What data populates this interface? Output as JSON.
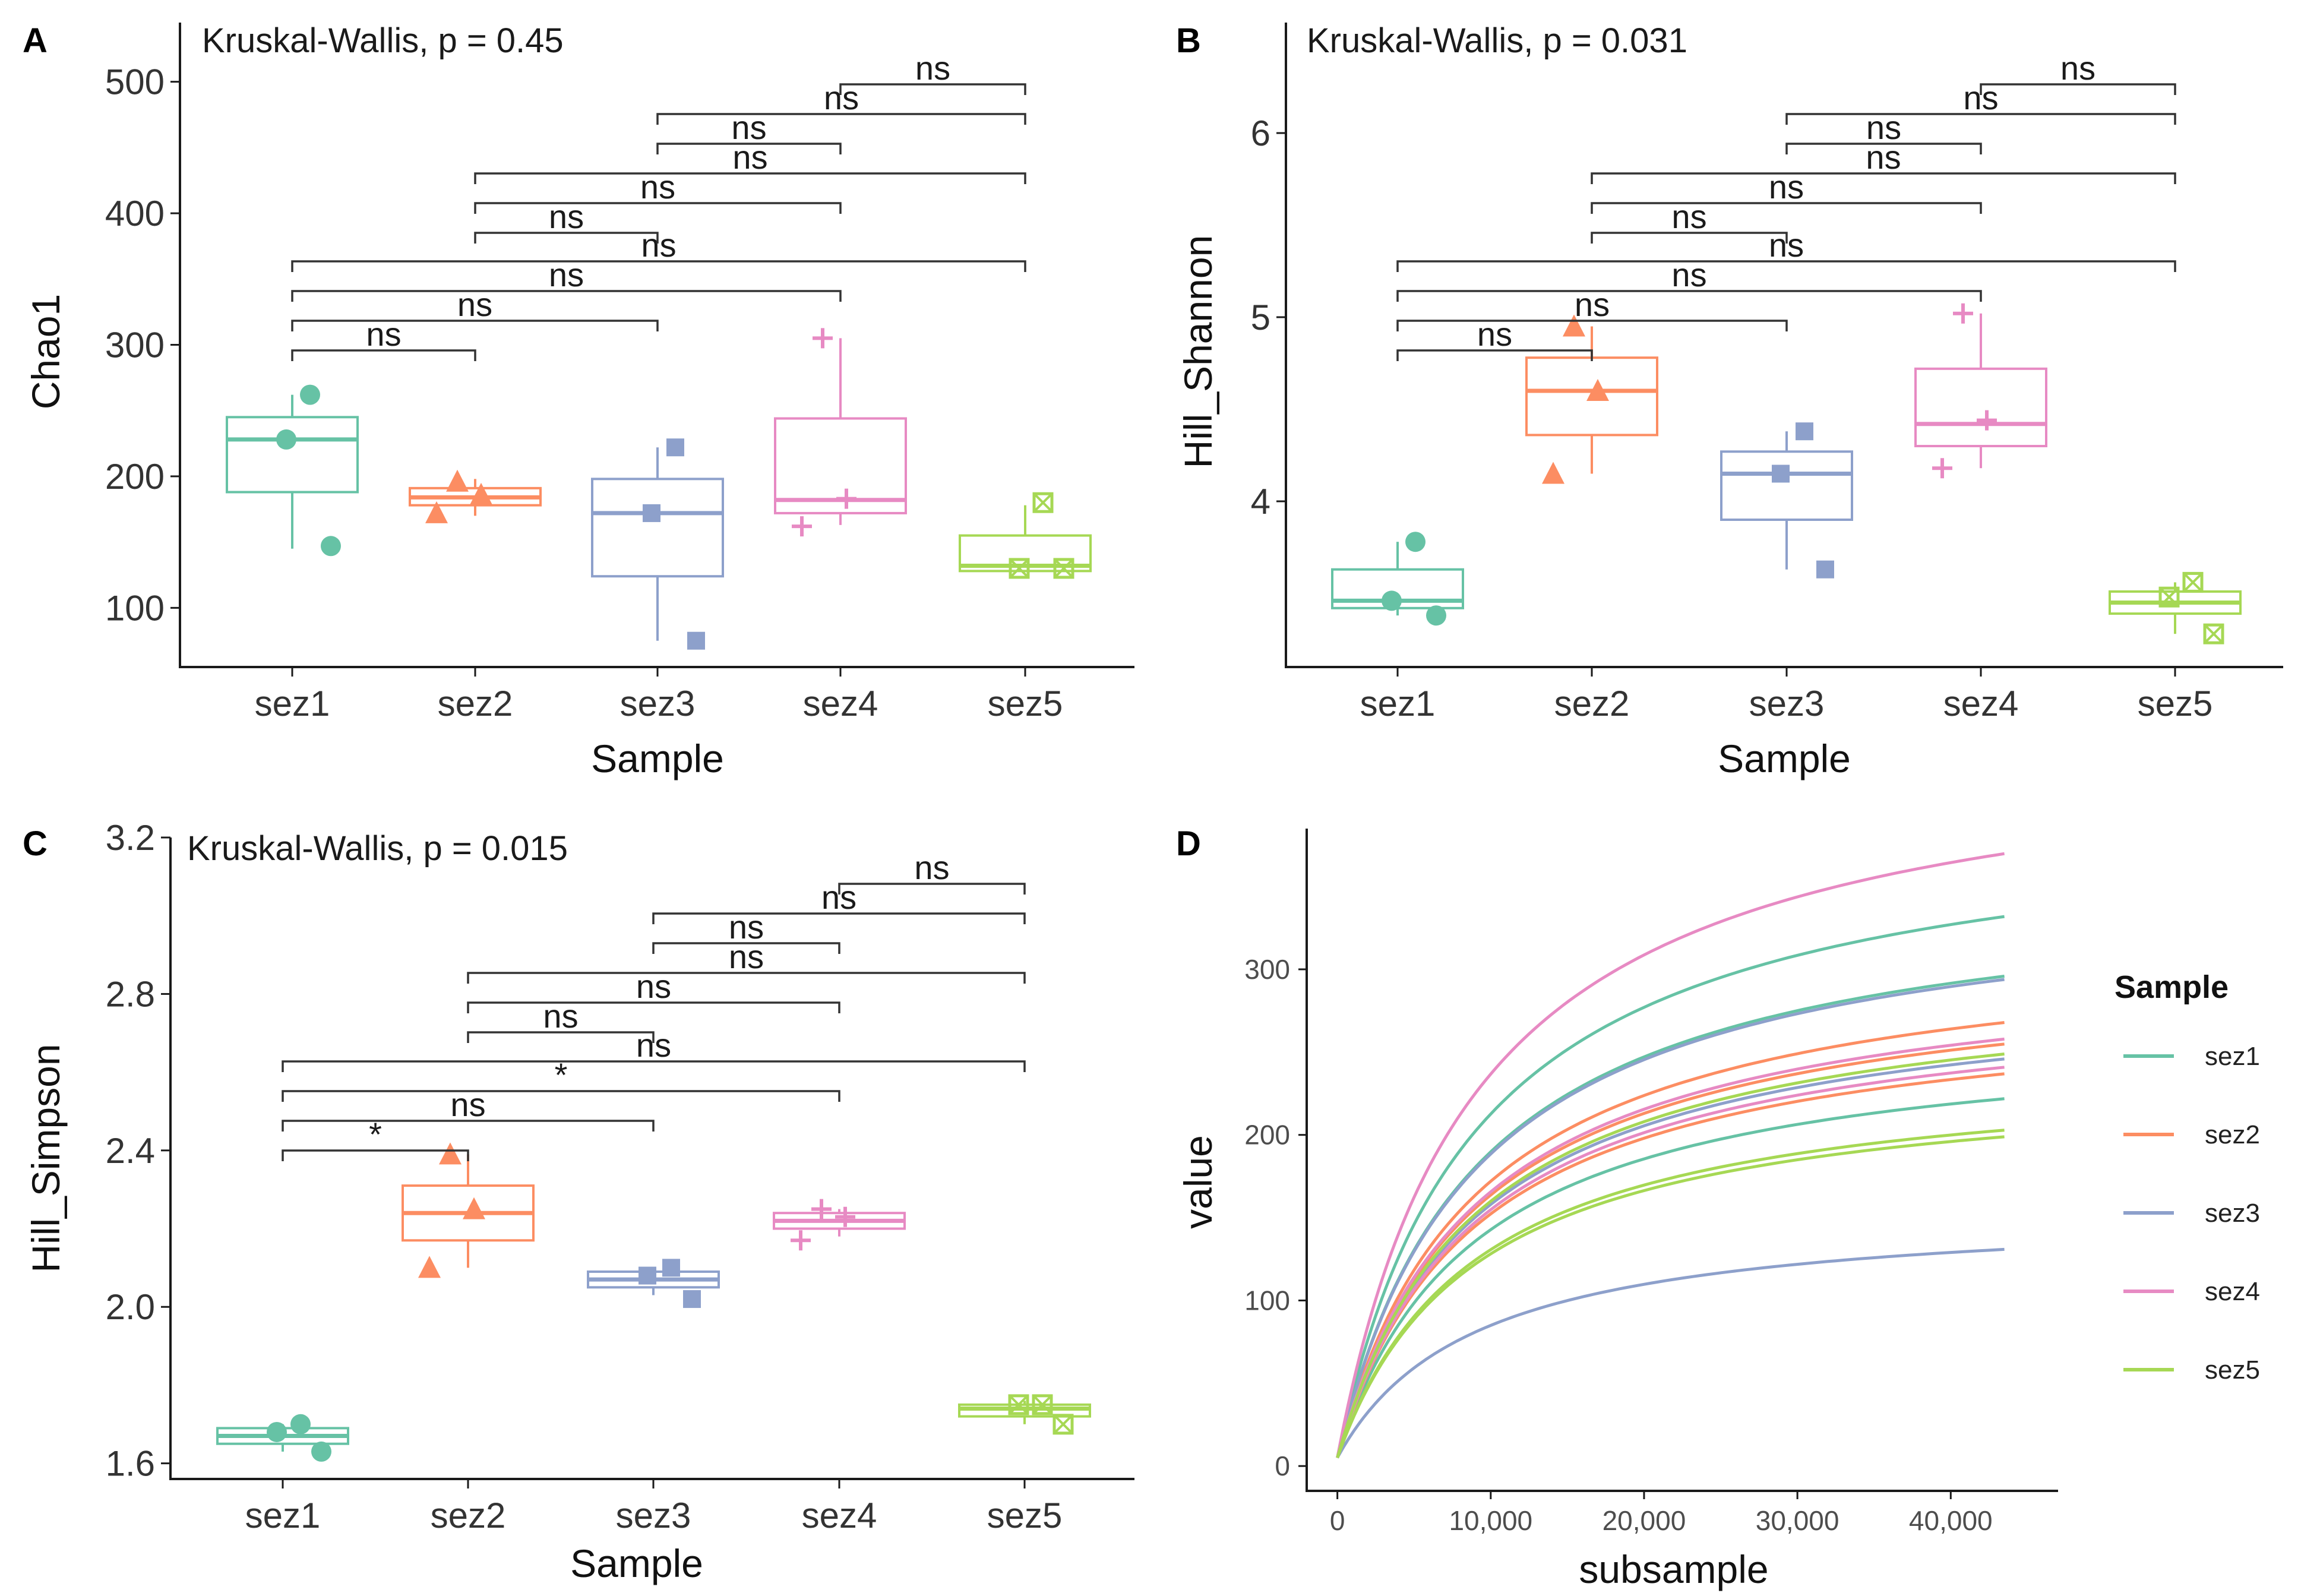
{
  "panels": [
    {
      "id": "A",
      "label": "A",
      "test_label": "Kruskal-Wallis, p = 0.45",
      "xlabel": "Sample",
      "ylabel": "Chao1",
      "categories": [
        "sez1",
        "sez2",
        "sez3",
        "sez4",
        "sez5"
      ],
      "yrange": [
        55,
        545
      ],
      "yticks": [
        100,
        200,
        300,
        400,
        500
      ],
      "ytick_labels": [
        "100",
        "200",
        "300",
        "400",
        "500"
      ],
      "boxes": [
        {
          "q1": 188,
          "median": 228,
          "q3": 245,
          "lo": 145,
          "hi": 262,
          "mean": 228,
          "points": [
            262,
            147,
            228
          ]
        },
        {
          "q1": 178,
          "median": 184,
          "q3": 191,
          "lo": 170,
          "hi": 198,
          "mean": 184,
          "points": [
            196,
            172,
            186
          ]
        },
        {
          "q1": 124,
          "median": 172,
          "q3": 198,
          "lo": 75,
          "hi": 222,
          "mean": 172,
          "points": [
            222,
            75,
            172
          ]
        },
        {
          "q1": 172,
          "median": 182,
          "q3": 244,
          "lo": 163,
          "hi": 305,
          "mean": 182,
          "points": [
            305,
            162,
            183
          ]
        },
        {
          "q1": 128,
          "median": 132,
          "q3": 155,
          "lo": 128,
          "hi": 178,
          "mean": 130,
          "points": [
            180,
            130,
            130
          ]
        }
      ],
      "comparisons": [
        {
          "pair": [
            1,
            2
          ],
          "label": "ns"
        },
        {
          "pair": [
            1,
            3
          ],
          "label": "ns"
        },
        {
          "pair": [
            1,
            4
          ],
          "label": "ns"
        },
        {
          "pair": [
            1,
            5
          ],
          "label": "ns"
        },
        {
          "pair": [
            2,
            3
          ],
          "label": "ns"
        },
        {
          "pair": [
            2,
            4
          ],
          "label": "ns"
        },
        {
          "pair": [
            2,
            5
          ],
          "label": "ns"
        },
        {
          "pair": [
            3,
            4
          ],
          "label": "ns"
        },
        {
          "pair": [
            3,
            5
          ],
          "label": "ns"
        },
        {
          "pair": [
            4,
            5
          ],
          "label": "ns"
        }
      ]
    },
    {
      "id": "B",
      "label": "B",
      "test_label": "Kruskal-Wallis, p = 0.031",
      "xlabel": "Sample",
      "ylabel": "Hill_Shannon",
      "categories": [
        "sez1",
        "sez2",
        "sez3",
        "sez4",
        "sez5"
      ],
      "yrange": [
        3.1,
        6.6
      ],
      "yticks": [
        4,
        5,
        6
      ],
      "ytick_labels": [
        "4",
        "5",
        "6"
      ],
      "boxes": [
        {
          "q1": 3.42,
          "median": 3.46,
          "q3": 3.63,
          "lo": 3.38,
          "hi": 3.78,
          "mean": 3.46,
          "points": [
            3.78,
            3.38,
            3.46
          ]
        },
        {
          "q1": 4.36,
          "median": 4.6,
          "q3": 4.78,
          "lo": 4.15,
          "hi": 4.95,
          "mean": 4.6,
          "points": [
            4.95,
            4.15,
            4.6
          ]
        },
        {
          "q1": 3.9,
          "median": 4.15,
          "q3": 4.27,
          "lo": 3.63,
          "hi": 4.38,
          "mean": 4.15,
          "points": [
            4.38,
            3.63,
            4.15
          ]
        },
        {
          "q1": 4.3,
          "median": 4.42,
          "q3": 4.72,
          "lo": 4.18,
          "hi": 5.02,
          "mean": 4.42,
          "points": [
            5.02,
            4.18,
            4.44
          ]
        },
        {
          "q1": 3.39,
          "median": 3.45,
          "q3": 3.51,
          "lo": 3.28,
          "hi": 3.56,
          "mean": 3.47,
          "points": [
            3.56,
            3.28,
            3.48
          ]
        }
      ],
      "comparisons": [
        {
          "pair": [
            1,
            2
          ],
          "label": "ns"
        },
        {
          "pair": [
            1,
            3
          ],
          "label": "ns"
        },
        {
          "pair": [
            1,
            4
          ],
          "label": "ns"
        },
        {
          "pair": [
            1,
            5
          ],
          "label": "ns"
        },
        {
          "pair": [
            2,
            3
          ],
          "label": "ns"
        },
        {
          "pair": [
            2,
            4
          ],
          "label": "ns"
        },
        {
          "pair": [
            2,
            5
          ],
          "label": "ns"
        },
        {
          "pair": [
            3,
            4
          ],
          "label": "ns"
        },
        {
          "pair": [
            3,
            5
          ],
          "label": "ns"
        },
        {
          "pair": [
            4,
            5
          ],
          "label": "ns"
        }
      ]
    },
    {
      "id": "C",
      "label": "C",
      "test_label": "Kruskal-Wallis, p = 0.015",
      "xlabel": "Sample",
      "ylabel": "Hill_Simpson",
      "categories": [
        "sez1",
        "sez2",
        "sez3",
        "sez4",
        "sez5"
      ],
      "yrange": [
        1.56,
        3.2
      ],
      "yticks": [
        1.6,
        2.0,
        2.4,
        2.8,
        3.2
      ],
      "ytick_labels": [
        "1.6",
        "2.0",
        "2.4",
        "2.8",
        "3.2"
      ],
      "boxes": [
        {
          "q1": 1.65,
          "median": 1.67,
          "q3": 1.69,
          "lo": 1.63,
          "hi": 1.7,
          "mean": 1.67,
          "points": [
            1.7,
            1.63,
            1.68
          ]
        },
        {
          "q1": 2.17,
          "median": 2.24,
          "q3": 2.31,
          "lo": 2.1,
          "hi": 2.39,
          "mean": 2.24,
          "points": [
            2.39,
            2.1,
            2.25
          ]
        },
        {
          "q1": 2.05,
          "median": 2.07,
          "q3": 2.09,
          "lo": 2.03,
          "hi": 2.1,
          "mean": 2.07,
          "points": [
            2.1,
            2.02,
            2.08
          ]
        },
        {
          "q1": 2.2,
          "median": 2.22,
          "q3": 2.24,
          "lo": 2.18,
          "hi": 2.25,
          "mean": 2.22,
          "points": [
            2.25,
            2.17,
            2.23
          ]
        },
        {
          "q1": 1.72,
          "median": 1.74,
          "q3": 1.75,
          "lo": 1.7,
          "hi": 1.76,
          "mean": 1.74,
          "points": [
            1.75,
            1.7,
            1.75
          ]
        }
      ],
      "comparisons": [
        {
          "pair": [
            1,
            2
          ],
          "label": "*"
        },
        {
          "pair": [
            1,
            3
          ],
          "label": "ns"
        },
        {
          "pair": [
            1,
            4
          ],
          "label": "*"
        },
        {
          "pair": [
            1,
            5
          ],
          "label": "ns"
        },
        {
          "pair": [
            2,
            3
          ],
          "label": "ns"
        },
        {
          "pair": [
            2,
            4
          ],
          "label": "ns"
        },
        {
          "pair": [
            2,
            5
          ],
          "label": "ns"
        },
        {
          "pair": [
            3,
            4
          ],
          "label": "ns"
        },
        {
          "pair": [
            3,
            5
          ],
          "label": "ns"
        },
        {
          "pair": [
            4,
            5
          ],
          "label": "ns"
        }
      ]
    }
  ],
  "chart_data": [
    {
      "type": "box",
      "panel": "A",
      "title": "Kruskal-Wallis, p = 0.45",
      "xlabel": "Sample",
      "ylabel": "Chao1",
      "categories": [
        "sez1",
        "sez2",
        "sez3",
        "sez4",
        "sez5"
      ],
      "medians": [
        228,
        184,
        172,
        182,
        132
      ],
      "ylim": [
        55,
        545
      ]
    },
    {
      "type": "box",
      "panel": "B",
      "title": "Kruskal-Wallis, p = 0.031",
      "xlabel": "Sample",
      "ylabel": "Hill_Shannon",
      "categories": [
        "sez1",
        "sez2",
        "sez3",
        "sez4",
        "sez5"
      ],
      "medians": [
        3.46,
        4.6,
        4.15,
        4.42,
        3.45
      ],
      "ylim": [
        3.1,
        6.6
      ]
    },
    {
      "type": "box",
      "panel": "C",
      "title": "Kruskal-Wallis, p = 0.015",
      "xlabel": "Sample",
      "ylabel": "Hill_Simpson",
      "categories": [
        "sez1",
        "sez2",
        "sez3",
        "sez4",
        "sez5"
      ],
      "medians": [
        1.67,
        2.24,
        2.07,
        2.22,
        1.74
      ],
      "ylim": [
        1.56,
        3.2
      ]
    },
    {
      "type": "line",
      "panel": "D",
      "label": "D",
      "xlabel": "subsample",
      "ylabel": "value",
      "xlim": [
        -2000,
        47000
      ],
      "ylim": [
        -15,
        385
      ],
      "xticks": [
        0,
        10000,
        20000,
        30000,
        40000
      ],
      "xtick_labels": [
        "0",
        "10,000",
        "20,000",
        "30,000",
        "40,000"
      ],
      "yticks": [
        0,
        100,
        200,
        300
      ],
      "ytick_labels": [
        "0",
        "100",
        "200",
        "300"
      ],
      "x_end": 43500,
      "legend_title": "Sample",
      "legend": [
        "sez1",
        "sez2",
        "sez3",
        "sez4",
        "sez5"
      ],
      "series": [
        {
          "name": "sez1",
          "final_values": [
            331,
            295,
            221
          ]
        },
        {
          "name": "sez2",
          "final_values": [
            267,
            254,
            236
          ]
        },
        {
          "name": "sez3",
          "final_values": [
            293,
            245,
            130
          ]
        },
        {
          "name": "sez4",
          "final_values": [
            369,
            257,
            240
          ]
        },
        {
          "name": "sez5",
          "final_values": [
            248,
            202,
            198
          ]
        }
      ]
    }
  ],
  "colors": {
    "sez1": "#66C2A5",
    "sez2": "#FC8D62",
    "sez3": "#8DA0CB",
    "sez4": "#E78AC3",
    "sez5": "#A6D854"
  }
}
